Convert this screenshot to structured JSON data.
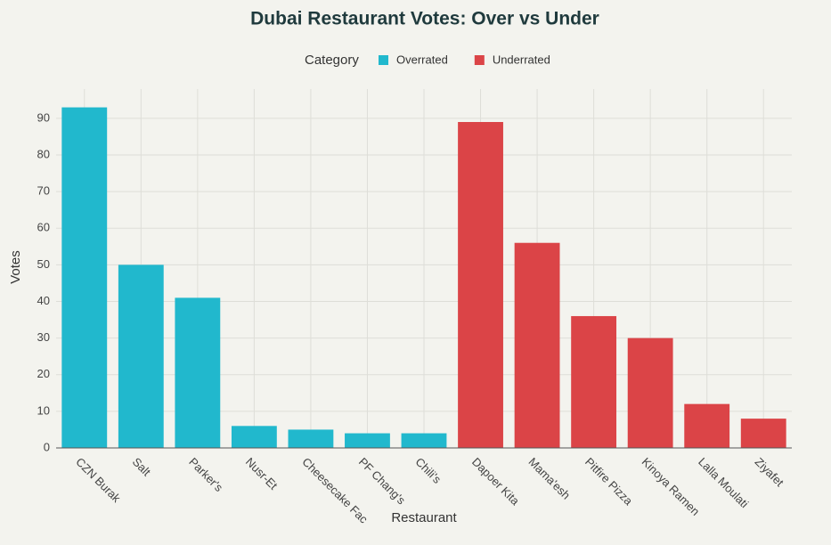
{
  "chart_data": {
    "type": "bar",
    "title": "Dubai Restaurant Votes: Over vs Under",
    "x_label": "Restaurant",
    "y_label": "Votes",
    "legend_title": "Category",
    "categories": [
      "CZN Burak",
      "Salt",
      "Parker's",
      "Nusr-Et",
      "Cheesecake Fac",
      "PF Chang's",
      "Chili's",
      "Dapoer Kita",
      "Mama'esh",
      "Pitfire Pizza",
      "Kinoya Ramen",
      "Lalla Moulati",
      "Ziyafet"
    ],
    "series": [
      {
        "name": "Overrated",
        "color": "#21b8cd",
        "values": [
          93,
          50,
          41,
          6,
          5,
          4,
          4,
          null,
          null,
          null,
          null,
          null,
          null
        ]
      },
      {
        "name": "Underrated",
        "color": "#db4447",
        "values": [
          null,
          null,
          null,
          null,
          null,
          null,
          null,
          89,
          56,
          36,
          30,
          12,
          8
        ]
      }
    ],
    "ylim": [
      0,
      98
    ],
    "yticks": [
      0,
      10,
      20,
      30,
      40,
      50,
      60,
      70,
      80,
      90
    ],
    "grid": true,
    "legend": "top"
  }
}
